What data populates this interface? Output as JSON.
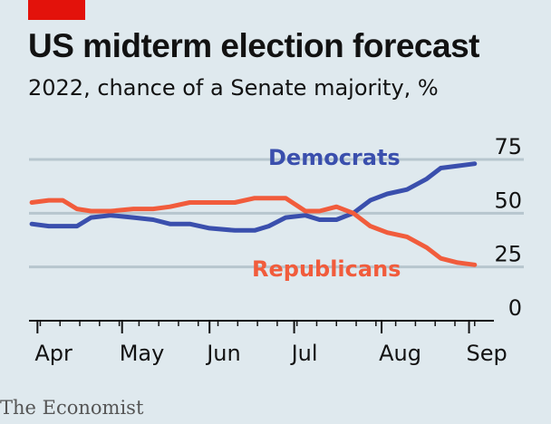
{
  "header": {
    "title": "US midterm election forecast",
    "subtitle": "2022, chance of a Senate majority, %"
  },
  "source": "The Economist",
  "colors": {
    "background": "#dfe9ee",
    "brand_red": "#e3120b",
    "democrats": "#3a4fad",
    "republicans": "#f15c3c",
    "grid": "#b7c6ce"
  },
  "chart_data": {
    "type": "line",
    "title": "US midterm election forecast",
    "subtitle": "2022, chance of a Senate majority, %",
    "xlabel": "",
    "ylabel": "",
    "ylim": [
      0,
      75
    ],
    "yticks": [
      0,
      25,
      50,
      75
    ],
    "grid": true,
    "x_tick_labels": [
      "Apr",
      "May",
      "Jun",
      "Jul",
      "Aug",
      "Sep"
    ],
    "x_ticks": [
      "2022-04-01",
      "2022-05-01",
      "2022-06-01",
      "2022-07-01",
      "2022-08-01",
      "2022-09-01"
    ],
    "x": [
      "2022-03-30",
      "2022-04-05",
      "2022-04-10",
      "2022-04-15",
      "2022-04-20",
      "2022-04-27",
      "2022-05-05",
      "2022-05-12",
      "2022-05-18",
      "2022-05-25",
      "2022-06-01",
      "2022-06-10",
      "2022-06-17",
      "2022-06-22",
      "2022-06-28",
      "2022-07-05",
      "2022-07-10",
      "2022-07-16",
      "2022-07-22",
      "2022-07-28",
      "2022-08-03",
      "2022-08-10",
      "2022-08-17",
      "2022-08-22",
      "2022-08-28",
      "2022-09-03"
    ],
    "series": [
      {
        "name": "Democrats",
        "values": [
          45,
          44,
          44,
          44,
          48,
          49,
          48,
          47,
          45,
          45,
          43,
          42,
          42,
          44,
          48,
          49,
          47,
          47,
          50,
          56,
          59,
          61,
          66,
          71,
          72,
          73
        ]
      },
      {
        "name": "Republicans",
        "values": [
          55,
          56,
          56,
          52,
          51,
          51,
          52,
          52,
          53,
          55,
          55,
          55,
          57,
          57,
          57,
          51,
          51,
          53,
          50,
          44,
          41,
          39,
          34,
          29,
          27,
          26
        ]
      }
    ]
  }
}
